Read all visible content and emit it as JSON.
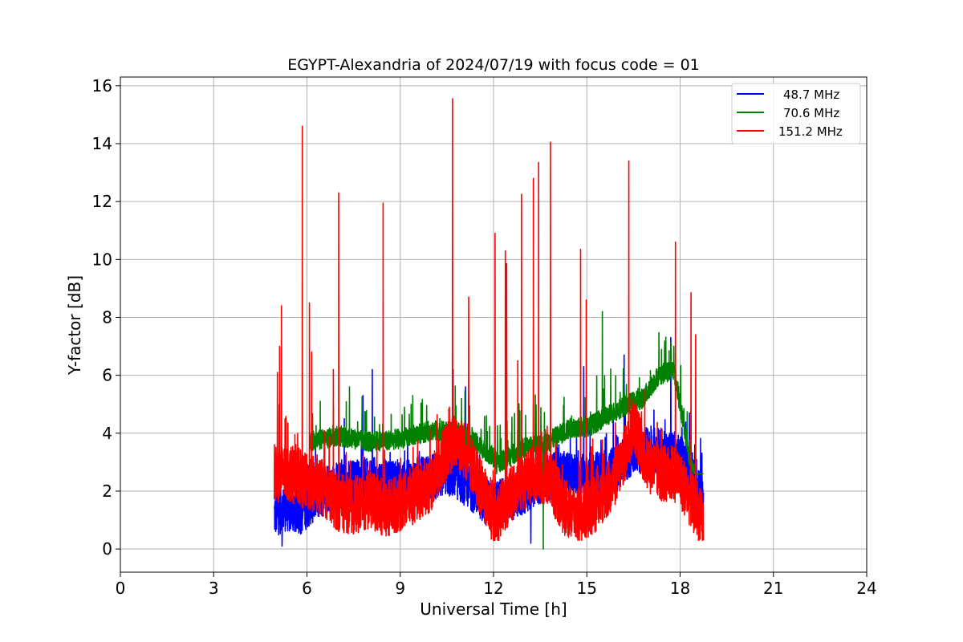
{
  "chart_data": {
    "type": "line",
    "title": "EGYPT-Alexandria of 2024/07/19 with focus code = 01",
    "xlabel": "Universal Time [h]",
    "ylabel": "Y-factor [dB]",
    "xlim": [
      0,
      24
    ],
    "ylim": [
      -0.8,
      16.3
    ],
    "xticks": [
      0,
      3,
      6,
      9,
      12,
      15,
      18,
      21,
      24
    ],
    "yticks": [
      0,
      2,
      4,
      6,
      8,
      10,
      12,
      14,
      16
    ],
    "grid": true,
    "legend_position": "top-right",
    "series": [
      {
        "name": "48.7 MHz",
        "color": "#0000ff",
        "base": [
          [
            4.95,
            1.2
          ],
          [
            5.3,
            1.4
          ],
          [
            5.8,
            1.3
          ],
          [
            6.3,
            1.8
          ],
          [
            7.0,
            2.2
          ],
          [
            8.0,
            2.4
          ],
          [
            9.0,
            2.2
          ],
          [
            10.0,
            2.5
          ],
          [
            10.7,
            2.6
          ],
          [
            11.3,
            2.1
          ],
          [
            11.9,
            1.5
          ],
          [
            12.5,
            1.7
          ],
          [
            13.2,
            2.1
          ],
          [
            14.0,
            2.6
          ],
          [
            15.0,
            2.5
          ],
          [
            16.0,
            2.8
          ],
          [
            16.5,
            3.4
          ],
          [
            17.2,
            3.4
          ],
          [
            17.8,
            3.3
          ],
          [
            18.3,
            2.8
          ],
          [
            18.75,
            1.8
          ]
        ],
        "noise": 0.8,
        "spikes": [
          [
            5.2,
            0.1
          ],
          [
            7.2,
            4.5
          ],
          [
            7.8,
            5.3
          ],
          [
            8.1,
            6.2
          ],
          [
            10.7,
            6.2
          ],
          [
            11.1,
            5.6
          ],
          [
            12.9,
            4.8
          ],
          [
            13.2,
            0.2
          ],
          [
            14.9,
            6.3
          ],
          [
            16.2,
            6.7
          ],
          [
            17.7,
            7.3
          ],
          [
            18.6,
            2.6
          ]
        ]
      },
      {
        "name": "70.6 MHz",
        "color": "#008000",
        "base": [
          [
            6.1,
            3.7
          ],
          [
            7.0,
            3.9
          ],
          [
            8.0,
            3.7
          ],
          [
            9.0,
            3.8
          ],
          [
            10.0,
            4.1
          ],
          [
            11.0,
            4.0
          ],
          [
            11.5,
            3.6
          ],
          [
            12.2,
            3.0
          ],
          [
            13.0,
            3.5
          ],
          [
            13.6,
            3.6
          ],
          [
            14.5,
            4.2
          ],
          [
            15.0,
            4.2
          ],
          [
            15.5,
            4.5
          ],
          [
            16.3,
            5.0
          ],
          [
            16.8,
            5.2
          ],
          [
            17.3,
            6.0
          ],
          [
            17.8,
            6.2
          ],
          [
            18.3,
            3.2
          ],
          [
            18.75,
            1.5
          ]
        ],
        "noise": 0.35,
        "spikes": [
          [
            9.4,
            5.3
          ],
          [
            12.1,
            2.6
          ],
          [
            13.6,
            0.0
          ],
          [
            15.5,
            8.2
          ],
          [
            17.5,
            6.9
          ]
        ]
      },
      {
        "name": "151.2 MHz",
        "color": "#ff0000",
        "base": [
          [
            4.95,
            2.6
          ],
          [
            5.5,
            2.6
          ],
          [
            6.0,
            2.3
          ],
          [
            6.5,
            2.1
          ],
          [
            7.0,
            1.6
          ],
          [
            7.5,
            1.5
          ],
          [
            8.0,
            1.7
          ],
          [
            8.5,
            1.4
          ],
          [
            9.0,
            1.6
          ],
          [
            9.5,
            1.9
          ],
          [
            10.0,
            2.3
          ],
          [
            10.5,
            3.4
          ],
          [
            10.8,
            3.8
          ],
          [
            11.2,
            3.2
          ],
          [
            11.6,
            2.1
          ],
          [
            12.0,
            1.0
          ],
          [
            12.3,
            1.5
          ],
          [
            12.8,
            2.2
          ],
          [
            13.3,
            2.6
          ],
          [
            13.8,
            2.4
          ],
          [
            14.3,
            1.4
          ],
          [
            14.8,
            1.2
          ],
          [
            15.3,
            1.6
          ],
          [
            15.8,
            2.2
          ],
          [
            16.3,
            3.5
          ],
          [
            16.5,
            4.4
          ],
          [
            16.9,
            3.0
          ],
          [
            17.4,
            2.6
          ],
          [
            17.9,
            2.6
          ],
          [
            18.3,
            1.8
          ],
          [
            18.75,
            0.9
          ]
        ],
        "noise": 1.0,
        "spikes": [
          [
            5.05,
            6.1
          ],
          [
            5.12,
            7.0
          ],
          [
            5.18,
            8.4
          ],
          [
            5.85,
            14.6
          ],
          [
            6.08,
            8.5
          ],
          [
            6.15,
            6.8
          ],
          [
            6.85,
            6.2
          ],
          [
            7.02,
            12.3
          ],
          [
            8.45,
            11.95
          ],
          [
            10.68,
            15.55
          ],
          [
            11.2,
            8.7
          ],
          [
            12.05,
            10.9
          ],
          [
            12.38,
            10.3
          ],
          [
            12.42,
            9.85
          ],
          [
            12.78,
            6.5
          ],
          [
            12.9,
            12.25
          ],
          [
            13.28,
            12.8
          ],
          [
            13.45,
            13.35
          ],
          [
            13.83,
            14.05
          ],
          [
            14.8,
            10.35
          ],
          [
            14.98,
            8.6
          ],
          [
            16.35,
            13.4
          ],
          [
            17.85,
            10.6
          ],
          [
            18.35,
            8.85
          ],
          [
            18.5,
            7.4
          ]
        ]
      }
    ]
  }
}
